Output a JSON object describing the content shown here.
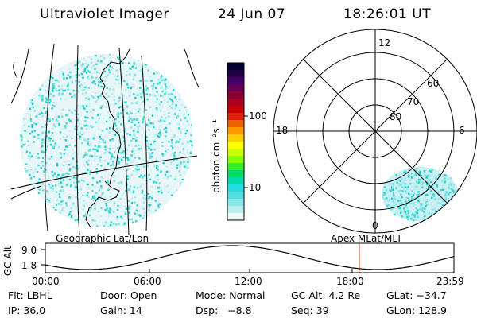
{
  "header": {
    "title": "Ultraviolet Imager",
    "date": "24 Jun 07",
    "time": "18:26:01 UT"
  },
  "colorbar": {
    "unit_label": "photon cm⁻²s⁻¹",
    "tick_labels": [
      "100",
      "10"
    ],
    "colors": [
      "#000033",
      "#220044",
      "#440066",
      "#660055",
      "#880033",
      "#aa0022",
      "#cc0000",
      "#e02010",
      "#f06000",
      "#ff9900",
      "#ffd000",
      "#ffff00",
      "#ccff00",
      "#88ff00",
      "#33ee33",
      "#00dd66",
      "#00ddaa",
      "#22dddd",
      "#55dddd",
      "#88e8e8",
      "#bbf0f0",
      "#eef8f8"
    ]
  },
  "left_map": {
    "label": "Geographic Lat/Lon",
    "dot_colors": [
      "#1ccccc",
      "#2ed8c8",
      "#66e0e0",
      "#99e8ec",
      "#c8f0f2"
    ]
  },
  "right_map": {
    "label": "Apex MLat/MLT",
    "mlt_labels": {
      "top": "12",
      "left": "18",
      "right": "6",
      "bottom": "0"
    },
    "lat_labels": [
      "60",
      "70",
      "80"
    ]
  },
  "altitude_plot": {
    "ylabel": "GC Alt",
    "ytick_top": "9.0",
    "ytick_bottom": "1.8",
    "xticks": [
      "00:00",
      "06:00",
      "12:00",
      "18:00",
      "23:59"
    ],
    "current_time_marker": "18:26",
    "marker_color": "#cc0000"
  },
  "info": {
    "row1": {
      "filter": "Flt: LBHL",
      "door": "Door: Open",
      "mode": "Mode: Normal",
      "gc_alt": "GC Alt: 4.2 Re",
      "glat": "GLat: −34.7"
    },
    "row2": {
      "ip": "IP: 36.0",
      "gain": "Gain: 14",
      "dsp": "Dsp:   −8.8",
      "seq": "Seq: 39",
      "glon": "GLon: 128.9"
    }
  }
}
